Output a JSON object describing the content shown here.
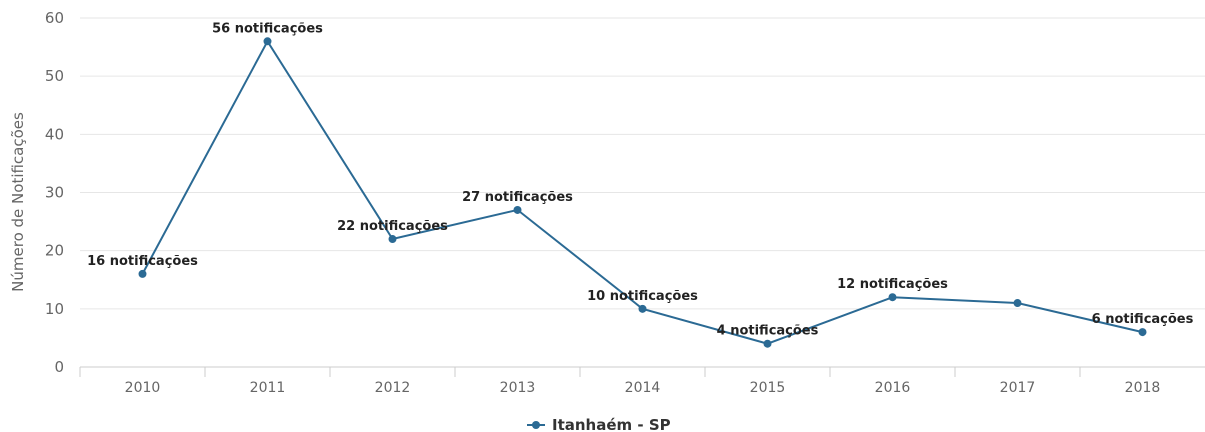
{
  "chart_data": {
    "type": "line",
    "title": "",
    "xlabel": "",
    "ylabel": "Número de Notificações",
    "categories": [
      "2010",
      "2011",
      "2012",
      "2013",
      "2014",
      "2015",
      "2016",
      "2017",
      "2018"
    ],
    "ylim": [
      0,
      60
    ],
    "yticks": [
      "0",
      "10",
      "20",
      "30",
      "40",
      "50",
      "60"
    ],
    "grid": true,
    "legend_position": "bottom-center",
    "series": [
      {
        "name": "Itanhaém - SP",
        "color": "#2b6a94",
        "values": [
          16,
          56,
          22,
          27,
          10,
          4,
          12,
          11,
          6
        ],
        "labels": [
          "16 notificações",
          "56 notificações",
          "22 notificações",
          "27 notificações",
          "10 notificações",
          "4 notificações",
          "12 notificações",
          "",
          "6 notificações"
        ]
      }
    ]
  }
}
